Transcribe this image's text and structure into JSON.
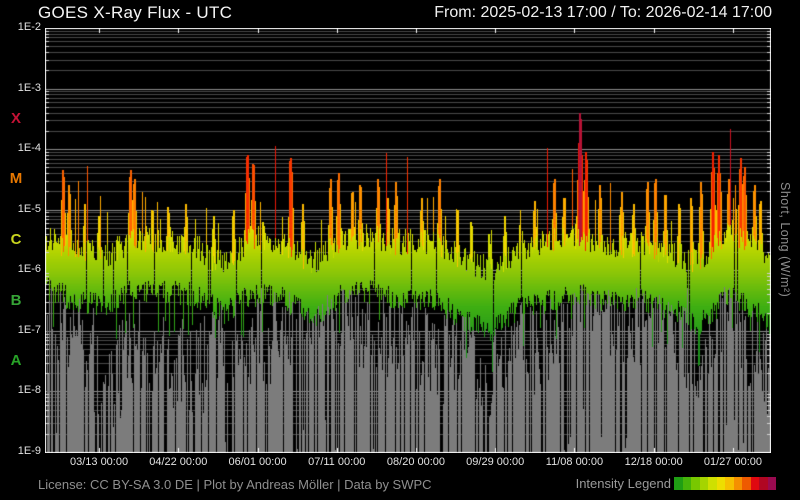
{
  "header": {
    "title": "GOES X-Ray Flux - UTC",
    "range_label": "From: 2025-02-13 17:00  /  To: 2026-02-14 17:00"
  },
  "footer": {
    "license": "License: CC BY-SA 3.0 DE | Plot by Andreas Möller | Data by SWPC",
    "legend_label": "Intensity Legend"
  },
  "chart_data": {
    "type": "area",
    "title": "GOES X-Ray Flux - UTC",
    "time_range": {
      "from": "2025-02-13 17:00",
      "to": "2026-02-14 17:00",
      "days": 366
    },
    "x_ticks": [
      {
        "label": "03/13 00:00",
        "day": 27.29
      },
      {
        "label": "04/22 00:00",
        "day": 67.29
      },
      {
        "label": "06/01 00:00",
        "day": 107.29
      },
      {
        "label": "07/11 00:00",
        "day": 147.29
      },
      {
        "label": "08/20 00:00",
        "day": 187.29
      },
      {
        "label": "09/29 00:00",
        "day": 227.29
      },
      {
        "label": "11/08 00:00",
        "day": 267.29
      },
      {
        "label": "12/18 00:00",
        "day": 307.29
      },
      {
        "label": "01/27 00:00",
        "day": 347.29
      }
    ],
    "y_axis": {
      "log_min": -9,
      "log_max": -2,
      "ticks": [
        {
          "label": "1E-2",
          "log": -2
        },
        {
          "label": "1E-3",
          "log": -3
        },
        {
          "label": "1E-4",
          "log": -4
        },
        {
          "label": "1E-5",
          "log": -5
        },
        {
          "label": "1E-6",
          "log": -6
        },
        {
          "label": "1E-7",
          "log": -7
        },
        {
          "label": "1E-8",
          "log": -8
        },
        {
          "label": "1E-9",
          "log": -9
        }
      ],
      "right_label": "Short, Long (W/m²)"
    },
    "flare_classes": [
      {
        "label": "X",
        "log": -3.5,
        "color": "#c41235"
      },
      {
        "label": "M",
        "log": -4.5,
        "color": "#e87800"
      },
      {
        "label": "C",
        "log": -5.5,
        "color": "#c8d41e"
      },
      {
        "label": "B",
        "log": -6.5,
        "color": "#36a436"
      },
      {
        "label": "A",
        "log": -7.5,
        "color": "#28a428"
      }
    ],
    "intensity_scale": [
      [
        -7.2,
        "#1e941e"
      ],
      [
        -6.6,
        "#3faf12"
      ],
      [
        -6.1,
        "#84c409"
      ],
      [
        -5.7,
        "#b4d400"
      ],
      [
        -5.35,
        "#d8e000"
      ],
      [
        -5.1,
        "#f2d400"
      ],
      [
        -4.85,
        "#ffb400"
      ],
      [
        -4.55,
        "#ff8800"
      ],
      [
        -4.3,
        "#ff5a00"
      ],
      [
        -4.05,
        "#f52000"
      ],
      [
        -3.85,
        "#dc1010"
      ],
      [
        -3.5,
        "#bc1230"
      ],
      [
        -3.1,
        "#991450"
      ]
    ],
    "legend_swatches": [
      "#1f9e14",
      "#46b40a",
      "#78c800",
      "#a5d400",
      "#cfe000",
      "#eede00",
      "#f6c000",
      "#f59000",
      "#ee5a00",
      "#e00810",
      "#b00622",
      "#990a50"
    ],
    "series": {
      "long": {
        "label": "Long",
        "envelope_days": [
          0,
          15,
          30,
          45,
          60,
          75,
          90,
          105,
          120,
          135,
          150,
          165,
          180,
          195,
          210,
          225,
          240,
          255,
          270,
          285,
          300,
          315,
          330,
          345,
          355,
          366
        ],
        "log_max": [
          -5.5,
          -5.6,
          -5.8,
          -5.45,
          -5.5,
          -5.6,
          -5.9,
          -5.45,
          -5.55,
          -5.9,
          -5.5,
          -5.45,
          -5.55,
          -5.5,
          -5.8,
          -6.0,
          -5.7,
          -5.5,
          -5.45,
          -5.6,
          -5.55,
          -5.7,
          -5.9,
          -5.35,
          -5.5,
          -5.8
        ],
        "log_min": [
          -6.3,
          -6.5,
          -6.6,
          -6.3,
          -6.35,
          -6.4,
          -6.7,
          -6.4,
          -6.45,
          -6.8,
          -6.4,
          -6.35,
          -6.5,
          -6.45,
          -6.8,
          -7.0,
          -6.6,
          -6.5,
          -6.4,
          -6.5,
          -6.5,
          -6.6,
          -6.9,
          -6.4,
          -6.6,
          -6.9
        ]
      },
      "short": {
        "label": "Short",
        "color": "#7c7c7c",
        "envelope_days": [
          0,
          15,
          30,
          45,
          60,
          75,
          90,
          105,
          120,
          135,
          150,
          165,
          180,
          195,
          210,
          225,
          240,
          255,
          270,
          285,
          300,
          315,
          330,
          345,
          355,
          366
        ],
        "log_max": [
          -7.6,
          -7.1,
          -7.8,
          -7.0,
          -7.5,
          -7.6,
          -6.8,
          -7.2,
          -7.6,
          -6.9,
          -7.0,
          -7.4,
          -7.2,
          -7.3,
          -6.6,
          -7.6,
          -7.4,
          -6.9,
          -6.5,
          -7.3,
          -7.1,
          -6.7,
          -7.5,
          -6.4,
          -7.0,
          -7.2
        ]
      },
      "flares": [
        [
          9,
          -4.35
        ],
        [
          12,
          -4.6
        ],
        [
          20,
          -4.9
        ],
        [
          27,
          -5.1
        ],
        [
          43,
          -4.35
        ],
        [
          45,
          -4.5
        ],
        [
          54,
          -5.0
        ],
        [
          62,
          -4.95
        ],
        [
          71,
          -4.9
        ],
        [
          85,
          -5.1
        ],
        [
          95,
          -5.0
        ],
        [
          102,
          -4.1
        ],
        [
          105,
          -4.25
        ],
        [
          110,
          -5.2
        ],
        [
          124,
          -4.15
        ],
        [
          130,
          -4.9
        ],
        [
          144,
          -4.5
        ],
        [
          148,
          -4.4
        ],
        [
          155,
          -4.7
        ],
        [
          159,
          -4.6
        ],
        [
          168,
          -4.5
        ],
        [
          173,
          -4.8
        ],
        [
          177,
          -4.55
        ],
        [
          190,
          -4.8
        ],
        [
          199,
          -4.5
        ],
        [
          208,
          -5.0
        ],
        [
          215,
          -5.2
        ],
        [
          224,
          -5.4
        ],
        [
          232,
          -5.1
        ],
        [
          240,
          -5.0
        ],
        [
          247,
          -4.85
        ],
        [
          257,
          -4.5
        ],
        [
          262,
          -4.8
        ],
        [
          270,
          -3.4
        ],
        [
          273,
          -4.05
        ],
        [
          280,
          -4.6
        ],
        [
          291,
          -4.7
        ],
        [
          297,
          -4.9
        ],
        [
          304,
          -4.55
        ],
        [
          308,
          -4.5
        ],
        [
          313,
          -4.75
        ],
        [
          320,
          -4.9
        ],
        [
          326,
          -4.8
        ],
        [
          331,
          -4.55
        ],
        [
          337,
          -4.05
        ],
        [
          340,
          -4.1
        ],
        [
          345,
          -4.5
        ],
        [
          348,
          -4.6
        ],
        [
          351,
          -4.15
        ],
        [
          353,
          -4.3
        ],
        [
          358,
          -4.6
        ],
        [
          361,
          -4.85
        ]
      ]
    }
  }
}
